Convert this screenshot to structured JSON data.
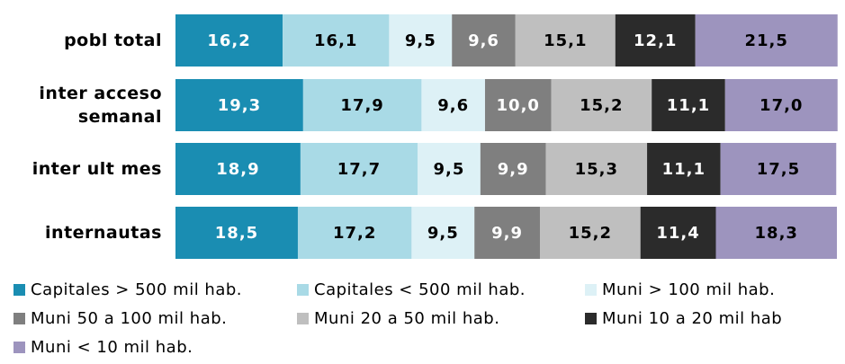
{
  "chart_data": {
    "type": "bar",
    "orientation": "horizontal",
    "stacked": true,
    "categories": [
      "pobl total",
      "inter acceso semanal",
      "inter ult mes",
      "internautas"
    ],
    "xlim": [
      0,
      100
    ],
    "series": [
      {
        "name": "Capitales > 500 mil hab.",
        "color": "#1a8db2",
        "values": [
          16.2,
          19.3,
          18.9,
          18.5
        ],
        "value_labels": [
          "16,2",
          "19,3",
          "18,9",
          "18,5"
        ]
      },
      {
        "name": "Capitales < 500 mil hab.",
        "color": "#a9dae6",
        "values": [
          16.1,
          17.9,
          17.7,
          17.2
        ],
        "value_labels": [
          "16,1",
          "17,9",
          "17,7",
          "17,2"
        ]
      },
      {
        "name": "Muni > 100 mil hab.",
        "color": "#ddf1f6",
        "values": [
          9.5,
          9.6,
          9.5,
          9.5
        ],
        "value_labels": [
          "9,5",
          "9,6",
          "9,5",
          "9,5"
        ]
      },
      {
        "name": "Muni  50 a 100 mil hab.",
        "color": "#7f7f7f",
        "values": [
          9.6,
          10.0,
          9.9,
          9.9
        ],
        "value_labels": [
          "9,6",
          "10,0",
          "9,9",
          "9,9"
        ]
      },
      {
        "name": "Muni 20 a 50 mil hab.",
        "color": "#bfbfbf",
        "values": [
          15.1,
          15.2,
          15.3,
          15.2
        ],
        "value_labels": [
          "15,1",
          "15,2",
          "15,3",
          "15,2"
        ]
      },
      {
        "name": "Muni 10 a 20 mil hab",
        "color": "#2b2b2b",
        "values": [
          12.1,
          11.1,
          11.1,
          11.4
        ],
        "value_labels": [
          "12,1",
          "11,1",
          "11,1",
          "11,4"
        ]
      },
      {
        "name": "Muni < 10 mil hab.",
        "color": "#9d94be",
        "values": [
          21.5,
          17.0,
          17.5,
          18.3
        ],
        "value_labels": [
          "21,5",
          "17,0",
          "17,5",
          "18,3"
        ]
      }
    ]
  }
}
